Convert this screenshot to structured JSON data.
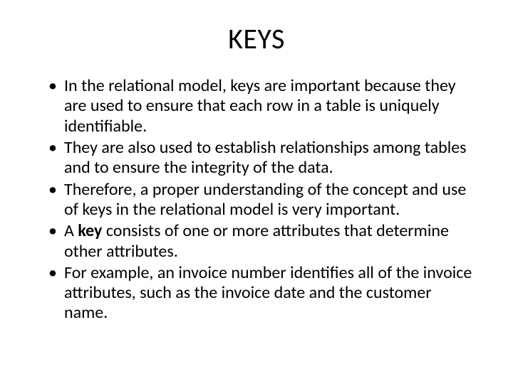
{
  "title": "KEYS",
  "bullets": [
    {
      "runs": [
        {
          "t": "In the relational model, keys are important because they are used to ensure that each row in a table is uniquely identifiable.",
          "b": false
        }
      ]
    },
    {
      "runs": [
        {
          "t": "They are also used to establish relationships among tables and to ensure the integrity of the data.",
          "b": false
        }
      ]
    },
    {
      "runs": [
        {
          "t": "Therefore, a proper understanding of the concept and use of keys in the relational model is very important.",
          "b": false
        }
      ]
    },
    {
      "runs": [
        {
          "t": " A ",
          "b": false
        },
        {
          "t": "key",
          "b": true
        },
        {
          "t": " consists of one or more attributes that determine other attributes.",
          "b": false
        }
      ]
    },
    {
      "runs": [
        {
          "t": "For example, an invoice number identifies all of the invoice attributes, such as the invoice date and the customer name.",
          "b": false
        }
      ]
    }
  ],
  "style": {
    "background_color": "#ffffff",
    "text_color": "#000000",
    "title_fontsize": 40,
    "body_fontsize": 24,
    "font_family": "Calibri"
  }
}
